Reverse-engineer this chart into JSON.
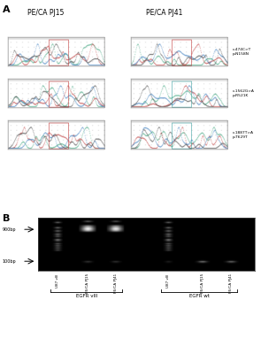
{
  "panel_A_label": "A",
  "panel_B_label": "B",
  "col1_title": "PE/CA PJ15",
  "col2_title": "PE/CA PJ41",
  "row_labels": [
    "c.474C>T\np.N158N",
    "c.1562G>A\np.R521K",
    "c.1887T>A\np.T629T"
  ],
  "gel_bg_color": "#0d0d0d",
  "bp900_label": "900bp",
  "bp100_label": "100bp",
  "egfr_viii_label": "EGFR vIII",
  "egfr_wt_label": "EGFR wt",
  "lane_labels_left": [
    "U87 vIII",
    "PE/CA PJ15",
    "PE/CA PJ41"
  ],
  "lane_labels_right": [
    "U87 vIII",
    "PE/CA PJ15",
    "PE/CA PJ41"
  ],
  "figure_bg": "#ffffff",
  "chromatogram_bg": "#ffffff",
  "chromatogram_border": "#bbbbbb",
  "chrom_trace_colors": [
    "#44aa88",
    "#cc4444",
    "#4488cc",
    "#444444"
  ],
  "red_box_color": "#cc3333",
  "green_box_color": "#33aaaa"
}
